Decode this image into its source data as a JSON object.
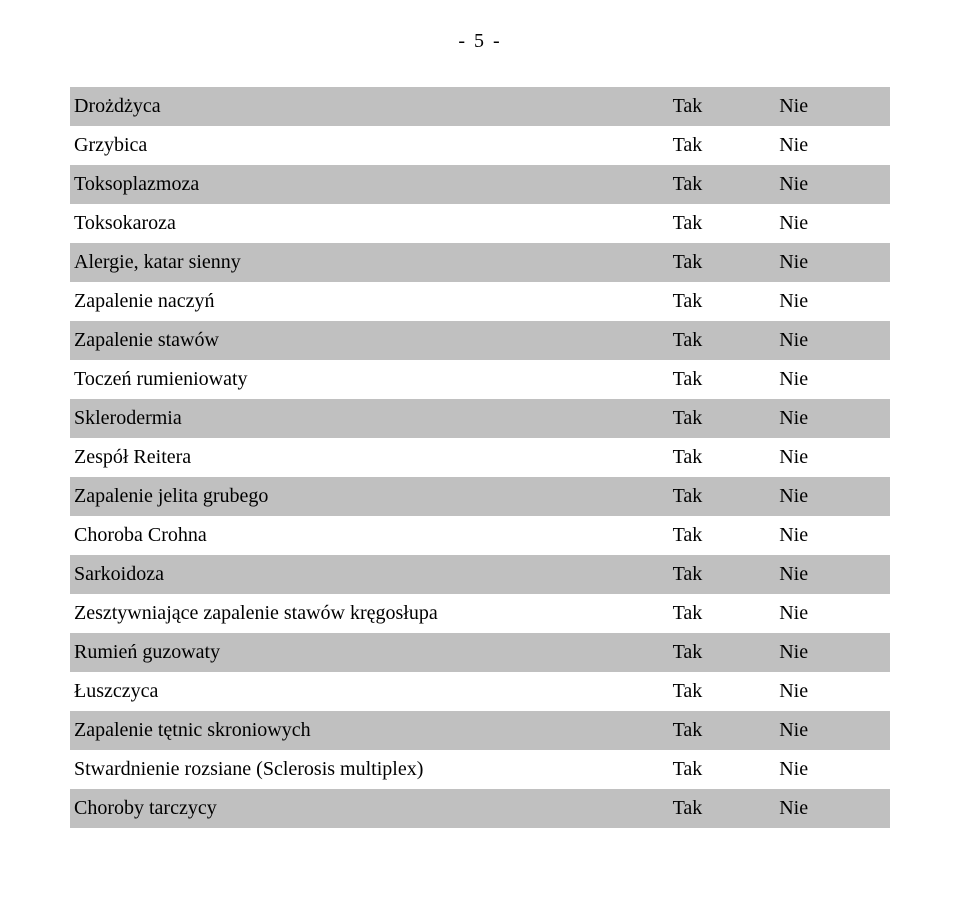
{
  "page_number_text": "- 5 -",
  "yes_label": "Tak",
  "no_label": "Nie",
  "table": {
    "row_shaded_bg": "#c0c0c0",
    "font_family": "Times New Roman",
    "font_size_pt": 15,
    "columns": [
      "label",
      "yes",
      "no"
    ],
    "rows": [
      {
        "label": "Drożdżyca",
        "shaded": true
      },
      {
        "label": "Grzybica",
        "shaded": false
      },
      {
        "label": "Toksoplazmoza",
        "shaded": true
      },
      {
        "label": "Toksokaroza",
        "shaded": false
      },
      {
        "label": "Alergie, katar sienny",
        "shaded": true
      },
      {
        "label": "Zapalenie naczyń",
        "shaded": false
      },
      {
        "label": "Zapalenie stawów",
        "shaded": true
      },
      {
        "label": "Toczeń rumieniowaty",
        "shaded": false
      },
      {
        "label": "Sklerodermia",
        "shaded": true
      },
      {
        "label": "Zespół Reitera",
        "shaded": false
      },
      {
        "label": "Zapalenie jelita grubego",
        "shaded": true
      },
      {
        "label": "Choroba Crohna",
        "shaded": false
      },
      {
        "label": "Sarkoidoza",
        "shaded": true
      },
      {
        "label": "Zesztywniające zapalenie stawów kręgosłupa",
        "shaded": false
      },
      {
        "label": "Rumień guzowaty",
        "shaded": true
      },
      {
        "label": "Łuszczyca",
        "shaded": false
      },
      {
        "label": "Zapalenie tętnic skroniowych",
        "shaded": true
      },
      {
        "label": "Stwardnienie rozsiane (Sclerosis multiplex)",
        "shaded": false
      },
      {
        "label": "Choroby tarczycy",
        "shaded": true
      }
    ]
  }
}
